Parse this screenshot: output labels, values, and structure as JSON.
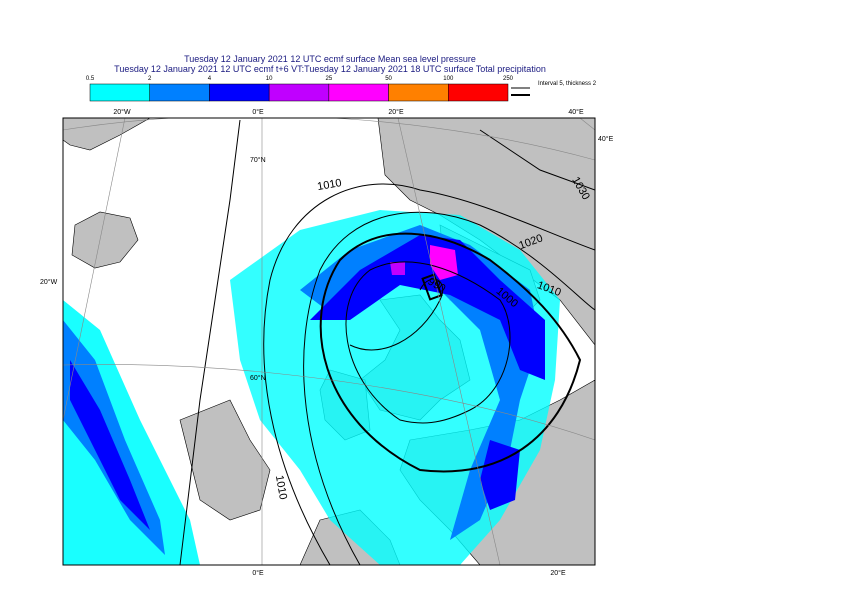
{
  "header": {
    "line1": "Tuesday 12 January 2021 12 UTC ecmf surface  Mean sea level pressure",
    "line2": "Tuesday 12 January 2021 12 UTC ecmf t+6 VT:Tuesday 12 January 2021 18 UTC surface  Total precipitation"
  },
  "colorbar": {
    "labels": [
      "0.5",
      "2",
      "4",
      "10",
      "25",
      "50",
      "100",
      "250"
    ],
    "colors": [
      "#00ffff",
      "#0080ff",
      "#0000ff",
      "#c000ff",
      "#ff00ff",
      "#ff8000",
      "#ff0000"
    ]
  },
  "legend": {
    "text": "Interval 5, thickness 2"
  },
  "map": {
    "lon_labels_top": [
      "20°W",
      "0°E",
      "20°E",
      "40°E"
    ],
    "lon_label_right": "40°E",
    "lat_label_left": "20°W",
    "lat_labels": [
      "70°N",
      "60°N"
    ],
    "lon_labels_bottom": [
      "0°E",
      "20°E"
    ],
    "contour_labels": [
      "1010",
      "1030",
      "1020",
      "1010",
      "1000",
      "990",
      "1010"
    ]
  }
}
